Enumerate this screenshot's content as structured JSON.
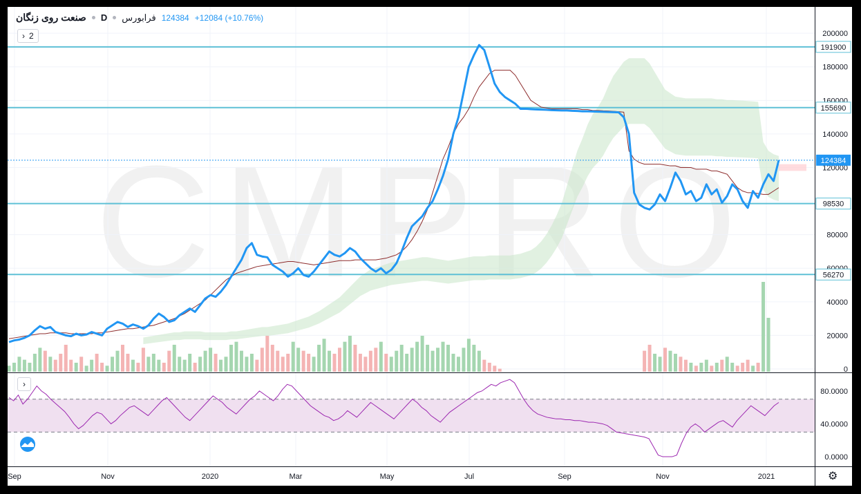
{
  "header": {
    "symbol": "صنعت روی زنگان",
    "interval": "D",
    "exchange": "فرابورس",
    "last_price": "124384",
    "change": "+12084 (+10.76%)",
    "legend_count": "2"
  },
  "colors": {
    "price_line": "#2196f3",
    "kijun_line": "#8d2c2c",
    "kumo_bull": "#c8e6c9",
    "kumo_bear": "#ffcdd2",
    "level_line": "#5ec0d6",
    "volume_up": "#a5d6b0",
    "volume_down": "#f4b4b4",
    "rsi_line": "#9c27b0",
    "rsi_band": "#f0e0f0",
    "price_tag": "#2196f3"
  },
  "icons": {
    "logo": "tradingview-logo-icon",
    "settings": "gear-icon",
    "collapse": "chevron-right-icon"
  },
  "watermark": "CMPRO",
  "chart_data": [
    {
      "type": "line",
      "title": "",
      "x_labels": [
        "Sep",
        "Nov",
        "2020",
        "Mar",
        "May",
        "Jul",
        "Sep",
        "Nov",
        "2021"
      ],
      "ylim": [
        0,
        205000
      ],
      "y_ticks": [
        0,
        20000,
        40000,
        60000,
        80000,
        100000,
        120000,
        140000,
        160000,
        180000,
        200000
      ],
      "horizontal_levels": [
        191900,
        155690,
        98530,
        56270
      ],
      "last_price": 124384,
      "series": [
        {
          "values": [
            16000,
            17000,
            17500,
            18500,
            20000,
            23000,
            25500,
            24000,
            25000,
            22000,
            21000,
            20000,
            19500,
            21000,
            20000,
            20500,
            22000,
            21000,
            20000,
            24000,
            26000,
            28000,
            27000,
            25000,
            26500,
            25500,
            24000,
            26000,
            30000,
            33000,
            31000,
            28000,
            29000,
            32000,
            34000,
            36000,
            34000,
            38000,
            42000,
            44000,
            43000,
            46000,
            50000,
            55000,
            60000,
            65000,
            72000,
            75000,
            68000,
            67000,
            66500,
            62000,
            60000,
            58000,
            55000,
            57000,
            60000,
            56000,
            55000,
            58000,
            62000,
            66000,
            70000,
            68000,
            67000,
            69000,
            72000,
            70000,
            66000,
            63000,
            60000,
            58000,
            60000,
            57000,
            59000,
            63000,
            70000,
            78000,
            85000,
            88000,
            91000,
            96000,
            100000,
            107000,
            115000,
            125000,
            140000,
            150000,
            165000,
            180000,
            187000,
            193000,
            190000,
            180000,
            170000,
            165000,
            162000,
            160000,
            158000,
            155000,
            155000,
            154800,
            154600,
            154500,
            154400,
            154200,
            154100,
            154000,
            154000,
            153800,
            153700,
            153500,
            153500,
            153400,
            153300,
            153200,
            153100,
            153000,
            152900,
            150000,
            140000,
            105000,
            98000,
            96000,
            95000,
            98000,
            104000,
            100000,
            108000,
            117000,
            112000,
            104000,
            106000,
            100000,
            102000,
            110000,
            104000,
            107000,
            99000,
            103000,
            110000,
            107000,
            100000,
            96000,
            106000,
            102000,
            110000,
            116000,
            112000,
            124384
          ]
        },
        {
          "values": [
            18000,
            18500,
            19000,
            19500,
            20000,
            20500,
            21000,
            21000,
            21500,
            21500,
            21500,
            21500,
            21000,
            21000,
            21000,
            21000,
            21000,
            21500,
            21500,
            22000,
            22500,
            23000,
            23500,
            24000,
            24000,
            24500,
            25000,
            25500,
            26000,
            27000,
            28000,
            29000,
            30000,
            31500,
            33000,
            35000,
            37000,
            39000,
            41000,
            44000,
            47000,
            50000,
            53000,
            55000,
            57000,
            58000,
            59000,
            60000,
            61000,
            61500,
            62000,
            62500,
            63000,
            63500,
            64000,
            64000,
            63500,
            63000,
            62500,
            62000,
            62500,
            63000,
            63500,
            64000,
            64500,
            64500,
            64500,
            65000,
            65000,
            65000,
            65000,
            65000,
            65500,
            66000,
            67000,
            68000,
            70000,
            73000,
            77000,
            82000,
            88000,
            95000,
            105000,
            115000,
            125000,
            132000,
            140000,
            146000,
            150000,
            155000,
            162000,
            168000,
            172000,
            176000,
            178000,
            178000,
            178000,
            178000,
            175000,
            170000,
            165000,
            160000,
            158000,
            156000,
            155500,
            155000,
            155000,
            155000,
            155000,
            155000,
            155000,
            154500,
            154500,
            154000,
            154000,
            153800,
            153700,
            153500,
            153300,
            153000,
            130000,
            125000,
            123000,
            122000,
            122000,
            122000,
            122000,
            121500,
            121000,
            121000,
            120000,
            120000,
            120000,
            119000,
            119000,
            119000,
            118000,
            118000,
            117000,
            116000,
            112000,
            108000,
            106000,
            105000,
            105000,
            104500,
            104000,
            104000,
            106000,
            108000
          ]
        }
      ],
      "volume": [
        2,
        3,
        5,
        4,
        3,
        6,
        8,
        7,
        5,
        4,
        6,
        9,
        4,
        3,
        5,
        2,
        4,
        6,
        3,
        2,
        5,
        7,
        9,
        6,
        4,
        3,
        8,
        5,
        6,
        4,
        3,
        7,
        9,
        5,
        4,
        6,
        3,
        5,
        7,
        8,
        6,
        4,
        5,
        9,
        10,
        7,
        5,
        6,
        4,
        8,
        12,
        9,
        7,
        5,
        6,
        10,
        8,
        7,
        6,
        5,
        9,
        11,
        7,
        6,
        8,
        10,
        12,
        9,
        6,
        5,
        7,
        8,
        10,
        6,
        5,
        7,
        9,
        6,
        8,
        10,
        12,
        9,
        7,
        8,
        10,
        9,
        6,
        5,
        8,
        11,
        9,
        7,
        4,
        3,
        2,
        1,
        0,
        0,
        0,
        0,
        0,
        0,
        0,
        0,
        0,
        0,
        0,
        0,
        0,
        0,
        0,
        0,
        0,
        0,
        0,
        0,
        0,
        0,
        0,
        0,
        0,
        0,
        0,
        7,
        9,
        6,
        5,
        8,
        7,
        6,
        5,
        4,
        3,
        2,
        3,
        4,
        2,
        3,
        4,
        5,
        3,
        2,
        3,
        4,
        2,
        3,
        30,
        18,
        0,
        0
      ]
    },
    {
      "type": "line",
      "title": "",
      "ylim": [
        -5,
        95
      ],
      "y_ticks": [
        0,
        40,
        80
      ],
      "y_tick_labels": [
        "0.0000",
        "40.0000",
        "80.0000"
      ],
      "band": [
        30,
        70
      ],
      "series": [
        {
          "values": [
            72,
            68,
            75,
            64,
            70,
            78,
            86,
            80,
            76,
            70,
            65,
            60,
            55,
            48,
            40,
            34,
            38,
            44,
            50,
            54,
            52,
            46,
            40,
            44,
            50,
            55,
            60,
            62,
            58,
            54,
            50,
            56,
            62,
            68,
            72,
            66,
            60,
            54,
            48,
            44,
            50,
            56,
            62,
            68,
            74,
            70,
            66,
            60,
            56,
            52,
            58,
            64,
            70,
            74,
            80,
            76,
            72,
            68,
            74,
            82,
            88,
            86,
            80,
            74,
            68,
            62,
            58,
            54,
            50,
            48,
            44,
            46,
            50,
            56,
            52,
            48,
            54,
            60,
            66,
            62,
            58,
            54,
            50,
            46,
            52,
            58,
            64,
            70,
            66,
            60,
            56,
            50,
            46,
            42,
            48,
            54,
            58,
            62,
            66,
            70,
            74,
            78,
            80,
            84,
            88,
            86,
            90,
            92,
            94,
            90,
            80,
            70,
            62,
            56,
            52,
            50,
            48,
            47,
            46,
            46,
            45,
            45,
            44,
            44,
            43,
            42,
            42,
            41,
            40,
            38,
            34,
            30,
            29,
            28,
            27,
            26,
            25,
            24,
            22,
            12,
            2,
            0,
            0,
            0,
            2,
            16,
            28,
            36,
            40,
            36,
            30,
            34,
            38,
            42,
            44,
            40,
            36,
            44,
            50,
            56,
            62,
            58,
            54,
            50,
            56,
            62,
            66
          ]
        }
      ]
    }
  ]
}
